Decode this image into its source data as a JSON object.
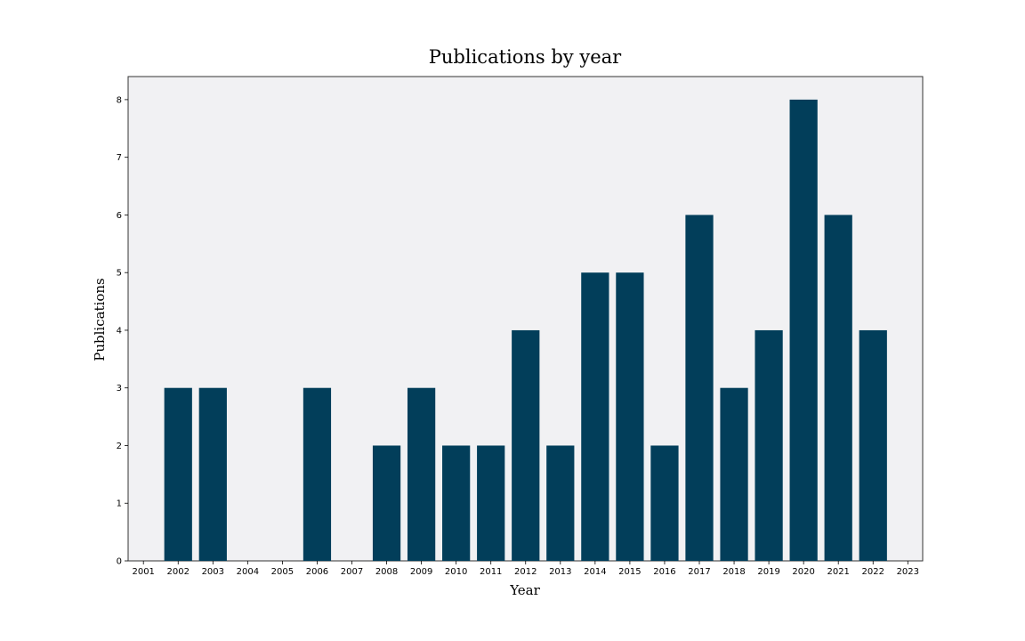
{
  "chart_data": {
    "type": "bar",
    "title": "Publications by year",
    "xlabel": "Year",
    "ylabel": "Publications",
    "categories": [
      "2001",
      "2002",
      "2003",
      "2004",
      "2005",
      "2006",
      "2007",
      "2008",
      "2009",
      "2010",
      "2011",
      "2012",
      "2013",
      "2014",
      "2015",
      "2016",
      "2017",
      "2018",
      "2019",
      "2020",
      "2021",
      "2022",
      "2023"
    ],
    "values": [
      0,
      3,
      3,
      0,
      0,
      3,
      0,
      2,
      3,
      2,
      2,
      4,
      2,
      5,
      5,
      2,
      6,
      3,
      4,
      8,
      6,
      4,
      0
    ],
    "ylim": [
      0,
      8.4
    ],
    "yticks": [
      "0",
      "1",
      "2",
      "3",
      "4",
      "5",
      "6",
      "7",
      "8"
    ],
    "grid": false,
    "colors": {
      "bar": "#023e5a",
      "plot_background": "#f1f1f3",
      "frame": "#333333"
    }
  }
}
